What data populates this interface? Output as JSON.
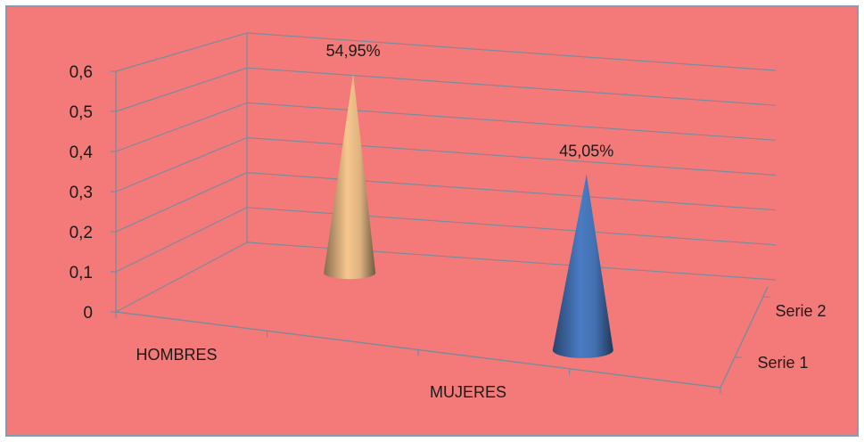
{
  "chart_data": {
    "type": "bar",
    "shape": "cone-3d",
    "title": "",
    "xlabel": "",
    "ylabel": "",
    "categories": [
      "HOMBRES",
      "MUJERES"
    ],
    "depth_series": [
      "Serie 1",
      "Serie 2"
    ],
    "yticks": [
      "0",
      "0,1",
      "0,2",
      "0,3",
      "0,4",
      "0,5",
      "0,6"
    ],
    "ylim": [
      0,
      0.6
    ],
    "grid": true,
    "legend": "none",
    "points": [
      {
        "category": "HOMBRES",
        "depth": "Serie 2",
        "value": 0.5495,
        "label": "54,95%",
        "color": "#f7c78e"
      },
      {
        "category": "MUJERES",
        "depth": "Serie 1",
        "value": 0.4505,
        "label": "45,05%",
        "color": "#4a7cc4"
      }
    ]
  },
  "colors": {
    "background": "#f47a7a",
    "frame_border": "#7f9fb8",
    "gridline": "#7d8a9c"
  }
}
